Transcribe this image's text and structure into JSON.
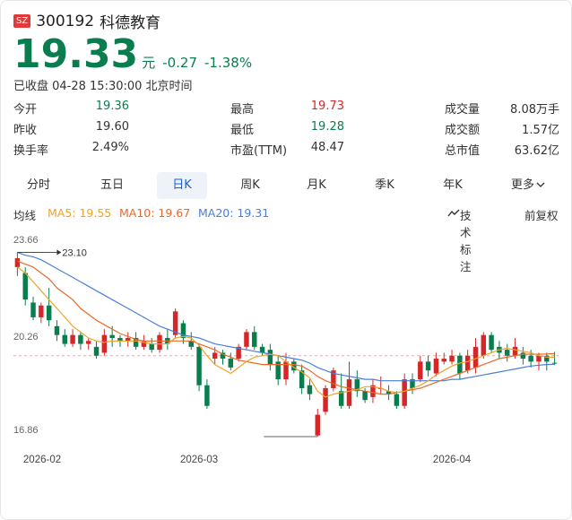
{
  "header": {
    "exchange": "SZ",
    "code": "300192",
    "name": "科德教育"
  },
  "quote": {
    "price": "19.33",
    "unit": "元",
    "change": "-0.27",
    "change_pct": "-1.38%",
    "status": "已收盘 04-28 15:30:00 北京时间"
  },
  "stats": [
    [
      {
        "label": "今开",
        "value": "19.36",
        "color": "#0a7d4e"
      },
      {
        "label": "最高",
        "value": "19.73",
        "color": "#d62728"
      },
      {
        "label": "成交量",
        "value": "8.08万手",
        "color": "#333"
      }
    ],
    [
      {
        "label": "昨收",
        "value": "19.60",
        "color": "#333"
      },
      {
        "label": "最低",
        "value": "19.28",
        "color": "#0a7d4e"
      },
      {
        "label": "成交额",
        "value": "1.57亿",
        "color": "#333"
      }
    ],
    [
      {
        "label": "换手率",
        "value": "2.49%",
        "color": "#333"
      },
      {
        "label": "市盈(TTM)",
        "value": "48.47",
        "color": "#333"
      },
      {
        "label": "总市值",
        "value": "63.62亿",
        "color": "#333"
      }
    ]
  ],
  "tabs": [
    "分时",
    "五日",
    "日K",
    "周K",
    "月K",
    "季K",
    "年K",
    "更多"
  ],
  "active_tab": "日K",
  "ma": {
    "title": "均线",
    "ma5": "MA5: 19.55",
    "ma10": "MA10: 19.67",
    "ma20": "MA20: 19.31",
    "tech": "技术标注",
    "adjust": "前复权"
  },
  "colors": {
    "up": "#d62728",
    "down": "#0a7d4e",
    "ma5": "#f0a22a",
    "ma10": "#e8692a",
    "ma20": "#4a7fd6",
    "accent": "#1a5fd3"
  },
  "chart_data": {
    "type": "candlestick",
    "y_ticks": [
      "23.66",
      "20.26",
      "16.86"
    ],
    "x_ticks": [
      "2026-02",
      "2026-03",
      "2026-04"
    ],
    "max_label": "23.10",
    "ylim": [
      16.86,
      23.66
    ],
    "reference_price": 19.6,
    "candles": [
      [
        22.6,
        22.9,
        22.3,
        23.1
      ],
      [
        22.4,
        21.5,
        21.3,
        22.6
      ],
      [
        21.4,
        20.9,
        20.8,
        21.6
      ],
      [
        20.9,
        21.3,
        20.7,
        21.4
      ],
      [
        21.3,
        20.8,
        20.6,
        21.9
      ],
      [
        20.6,
        20.3,
        20.1,
        20.8
      ],
      [
        20.3,
        20.0,
        19.9,
        20.5
      ],
      [
        20.0,
        20.3,
        19.9,
        20.5
      ],
      [
        20.3,
        20.0,
        19.8,
        20.4
      ],
      [
        20.0,
        20.1,
        19.8,
        20.2
      ],
      [
        19.9,
        19.6,
        19.5,
        20.1
      ],
      [
        19.7,
        20.3,
        19.6,
        20.5
      ],
      [
        20.3,
        20.2,
        19.9,
        20.6
      ],
      [
        20.2,
        20.1,
        19.9,
        20.3
      ],
      [
        20.1,
        20.2,
        19.9,
        20.4
      ],
      [
        20.2,
        19.9,
        19.8,
        20.4
      ],
      [
        19.9,
        20.1,
        19.8,
        20.3
      ],
      [
        20.0,
        19.8,
        19.7,
        20.2
      ],
      [
        19.8,
        20.3,
        19.7,
        20.4
      ],
      [
        20.2,
        20.0,
        19.8,
        20.5
      ],
      [
        20.3,
        21.1,
        20.2,
        21.2
      ],
      [
        20.7,
        20.2,
        20.0,
        20.8
      ],
      [
        20.1,
        19.9,
        19.8,
        20.4
      ],
      [
        19.9,
        18.6,
        18.4,
        20.0
      ],
      [
        18.6,
        17.9,
        17.8,
        18.8
      ],
      [
        19.5,
        19.7,
        19.3,
        19.9
      ],
      [
        19.7,
        19.5,
        19.3,
        19.8
      ],
      [
        19.5,
        19.2,
        19.1,
        19.7
      ],
      [
        19.5,
        19.9,
        19.4,
        20.0
      ],
      [
        19.9,
        20.4,
        19.8,
        20.5
      ],
      [
        20.4,
        19.9,
        19.8,
        20.6
      ],
      [
        19.9,
        19.7,
        19.6,
        20.0
      ],
      [
        19.8,
        19.3,
        19.1,
        20.0
      ],
      [
        19.4,
        18.8,
        18.6,
        19.6
      ],
      [
        18.8,
        19.4,
        18.6,
        19.7
      ],
      [
        19.4,
        19.1,
        19.0,
        19.5
      ],
      [
        19.1,
        18.5,
        18.3,
        19.3
      ],
      [
        18.6,
        18.3,
        18.1,
        18.8
      ],
      [
        16.9,
        17.6,
        16.86,
        17.8
      ],
      [
        17.7,
        18.5,
        17.6,
        18.6
      ],
      [
        18.5,
        19.1,
        18.4,
        19.2
      ],
      [
        18.4,
        17.9,
        17.8,
        19.0
      ],
      [
        17.9,
        18.8,
        17.8,
        19.4
      ],
      [
        18.8,
        18.4,
        18.2,
        19.1
      ],
      [
        18.4,
        18.1,
        18.0,
        18.5
      ],
      [
        18.2,
        18.6,
        18.0,
        18.8
      ],
      [
        18.5,
        18.5,
        18.3,
        18.9
      ],
      [
        18.4,
        18.3,
        18.1,
        18.6
      ],
      [
        18.3,
        17.9,
        17.8,
        18.4
      ],
      [
        17.9,
        18.8,
        17.8,
        19.0
      ],
      [
        18.8,
        18.5,
        18.3,
        19.0
      ],
      [
        18.8,
        19.4,
        18.7,
        19.6
      ],
      [
        19.4,
        19.1,
        18.9,
        19.6
      ],
      [
        19.0,
        19.5,
        18.9,
        19.7
      ],
      [
        19.4,
        19.5,
        19.3,
        19.7
      ],
      [
        19.4,
        19.6,
        19.3,
        19.8
      ],
      [
        19.6,
        19.0,
        18.8,
        19.7
      ],
      [
        19.1,
        19.6,
        19.0,
        19.8
      ],
      [
        19.2,
        19.9,
        19.0,
        20.2
      ],
      [
        19.6,
        20.3,
        19.5,
        20.4
      ],
      [
        20.3,
        19.8,
        19.7,
        20.4
      ],
      [
        19.9,
        19.7,
        19.5,
        20.1
      ],
      [
        19.8,
        19.6,
        19.4,
        20.0
      ],
      [
        19.6,
        19.9,
        19.5,
        20.2
      ],
      [
        19.7,
        19.5,
        19.3,
        19.9
      ],
      [
        19.6,
        19.4,
        19.2,
        19.8
      ],
      [
        19.4,
        19.6,
        19.1,
        19.7
      ],
      [
        19.6,
        19.4,
        19.1,
        19.7
      ],
      [
        19.36,
        19.33,
        19.28,
        19.73
      ]
    ],
    "ma5": [
      22.6,
      22.4,
      22.1,
      21.8,
      21.5,
      21.2,
      20.9,
      20.6,
      20.4,
      20.2,
      20.1,
      20.05,
      20.1,
      20.1,
      20.1,
      20.1,
      20.05,
      20.0,
      20.0,
      20.0,
      20.2,
      20.25,
      20.2,
      19.95,
      19.6,
      19.3,
      19.15,
      19.0,
      19.2,
      19.4,
      19.55,
      19.6,
      19.65,
      19.6,
      19.4,
      19.2,
      19.05,
      18.85,
      18.4,
      18.2,
      18.3,
      18.35,
      18.4,
      18.45,
      18.55,
      18.55,
      18.5,
      18.4,
      18.35,
      18.4,
      18.5,
      18.6,
      18.75,
      18.95,
      19.1,
      19.25,
      19.35,
      19.4,
      19.5,
      19.6,
      19.7,
      19.8,
      19.85,
      19.8,
      19.75,
      19.7,
      19.6,
      19.55,
      19.55
    ],
    "ma10": [
      22.8,
      22.7,
      22.6,
      22.4,
      22.2,
      21.9,
      21.7,
      21.5,
      21.2,
      21.0,
      20.8,
      20.65,
      20.5,
      20.35,
      20.25,
      20.15,
      20.1,
      20.1,
      20.1,
      20.1,
      20.1,
      20.1,
      20.1,
      20.0,
      19.9,
      19.8,
      19.65,
      19.55,
      19.45,
      19.4,
      19.35,
      19.3,
      19.3,
      19.3,
      19.3,
      19.3,
      19.25,
      19.1,
      18.9,
      18.75,
      18.65,
      18.55,
      18.5,
      18.45,
      18.4,
      18.35,
      18.3,
      18.3,
      18.35,
      18.4,
      18.45,
      18.5,
      18.6,
      18.7,
      18.8,
      18.9,
      19.0,
      19.1,
      19.2,
      19.3,
      19.4,
      19.5,
      19.55,
      19.6,
      19.65,
      19.65,
      19.65,
      19.66,
      19.67
    ],
    "ma20": [
      23.1,
      23.0,
      22.95,
      22.85,
      22.7,
      22.55,
      22.4,
      22.25,
      22.1,
      21.95,
      21.8,
      21.65,
      21.5,
      21.35,
      21.2,
      21.05,
      20.9,
      20.75,
      20.6,
      20.5,
      20.4,
      20.3,
      20.25,
      20.2,
      20.1,
      20.0,
      19.95,
      19.9,
      19.85,
      19.8,
      19.75,
      19.7,
      19.65,
      19.6,
      19.55,
      19.5,
      19.45,
      19.35,
      19.2,
      19.1,
      19.0,
      18.95,
      18.9,
      18.85,
      18.8,
      18.8,
      18.75,
      18.75,
      18.75,
      18.75,
      18.75,
      18.75,
      18.75,
      18.75,
      18.75,
      18.8,
      18.8,
      18.85,
      18.9,
      18.95,
      19.0,
      19.05,
      19.1,
      19.15,
      19.2,
      19.25,
      19.28,
      19.3,
      19.31
    ]
  }
}
